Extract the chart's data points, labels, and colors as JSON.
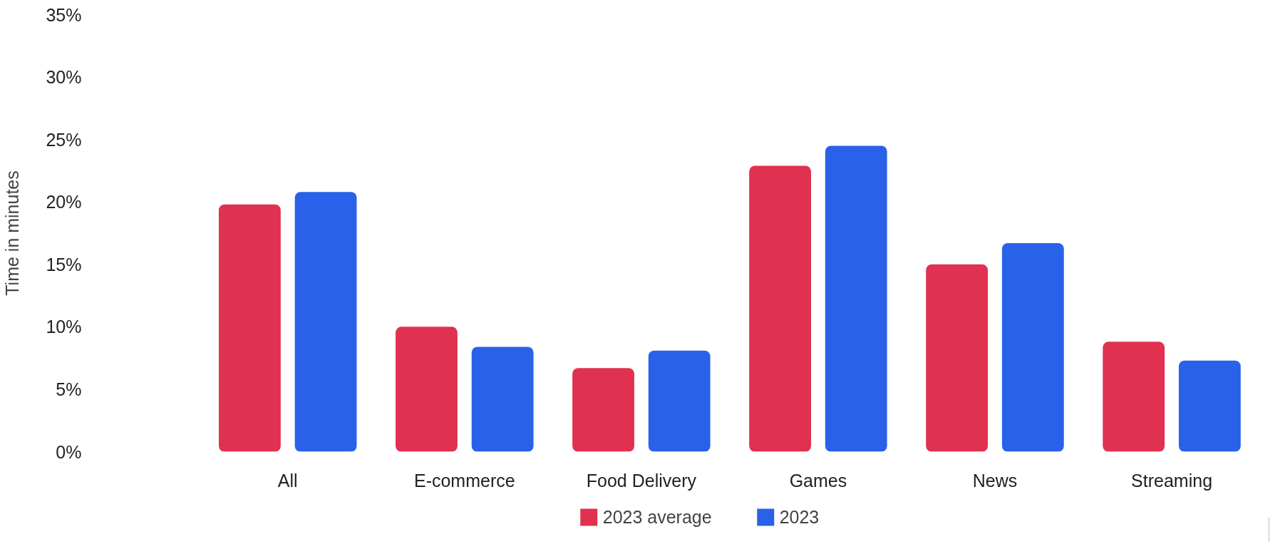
{
  "chart_data": {
    "type": "bar",
    "ylabel": "Time in minutes",
    "categories": [
      "All",
      "E-commerce",
      "Food Delivery",
      "Games",
      "News",
      "Streaming"
    ],
    "series": [
      {
        "name": "2023 average",
        "color": "#e03150",
        "values": [
          19.8,
          10.0,
          6.7,
          22.9,
          15.0,
          8.8
        ]
      },
      {
        "name": "2023",
        "color": "#2962e8",
        "values": [
          20.8,
          8.4,
          8.1,
          24.5,
          16.7,
          7.3
        ]
      }
    ],
    "ylim": [
      0,
      35
    ],
    "yticks": [
      {
        "value": 0,
        "label": "0%"
      },
      {
        "value": 5,
        "label": "5%"
      },
      {
        "value": 10,
        "label": "10%"
      },
      {
        "value": 15,
        "label": "15%"
      },
      {
        "value": 20,
        "label": "20%"
      },
      {
        "value": 25,
        "label": "25%"
      },
      {
        "value": 30,
        "label": "30%"
      },
      {
        "value": 35,
        "label": "35%"
      }
    ],
    "grid": false,
    "legend": "bottom"
  }
}
